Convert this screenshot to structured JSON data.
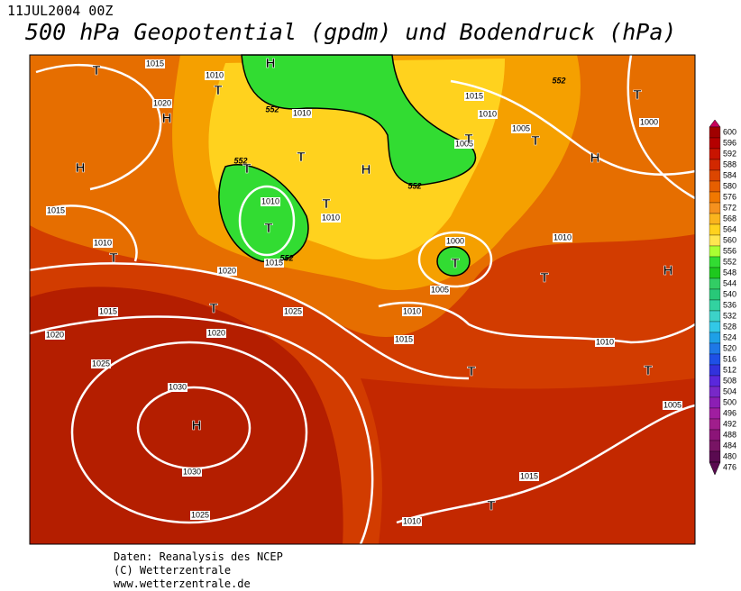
{
  "header": {
    "date": "11JUL2004 00Z",
    "title": "500 hPa Geopotential (gpdm) und Bodendruck (hPa)"
  },
  "legend": {
    "levels": [
      600,
      596,
      592,
      588,
      584,
      580,
      576,
      572,
      568,
      564,
      560,
      556,
      552,
      548,
      544,
      540,
      536,
      532,
      528,
      524,
      520,
      516,
      512,
      508,
      504,
      500,
      496,
      492,
      488,
      484,
      480,
      476
    ],
    "colors": [
      "#c8005a",
      "#a00000",
      "#b40000",
      "#c81400",
      "#d22800",
      "#dc4600",
      "#e65f00",
      "#f07800",
      "#f5911e",
      "#fab41e",
      "#ffd21e",
      "#ffe650",
      "#aaff32",
      "#32dc32",
      "#1ec81e",
      "#32cd64",
      "#28c878",
      "#32d2a0",
      "#3cd2c8",
      "#32c8e6",
      "#1ea0e6",
      "#1e78e6",
      "#1e50e6",
      "#3232dc",
      "#5a28dc",
      "#7828c8",
      "#8c1eb4",
      "#a01ea0",
      "#a01e8c",
      "#8c1478",
      "#781464",
      "#5a0a50"
    ]
  },
  "map": {
    "isobar_labels": [
      "1015",
      "1010",
      "1020",
      "1010",
      "1015",
      "1010",
      "1005",
      "1005",
      "1000",
      "1015",
      "1010",
      "1010",
      "1010",
      "1015",
      "1020",
      "1000",
      "1005",
      "1010",
      "1015",
      "1025",
      "1020",
      "1020",
      "1010",
      "1015",
      "1010",
      "1025",
      "1030",
      "1005",
      "1030",
      "1015",
      "1025",
      "1010"
    ],
    "geopotential_labels": [
      "552",
      "552",
      "552",
      "552",
      "552"
    ],
    "pressure_centers": [
      "T",
      "H",
      "T",
      "H",
      "H",
      "T",
      "T",
      "H",
      "T",
      "T",
      "T",
      "T",
      "T",
      "T",
      "T",
      "H",
      "T",
      "T",
      "H",
      "T",
      "T",
      "H",
      "T"
    ]
  },
  "footer": {
    "lines": [
      "Daten: Reanalysis des NCEP",
      "(C) Wetterzentrale",
      "www.wetterzentrale.de"
    ]
  }
}
